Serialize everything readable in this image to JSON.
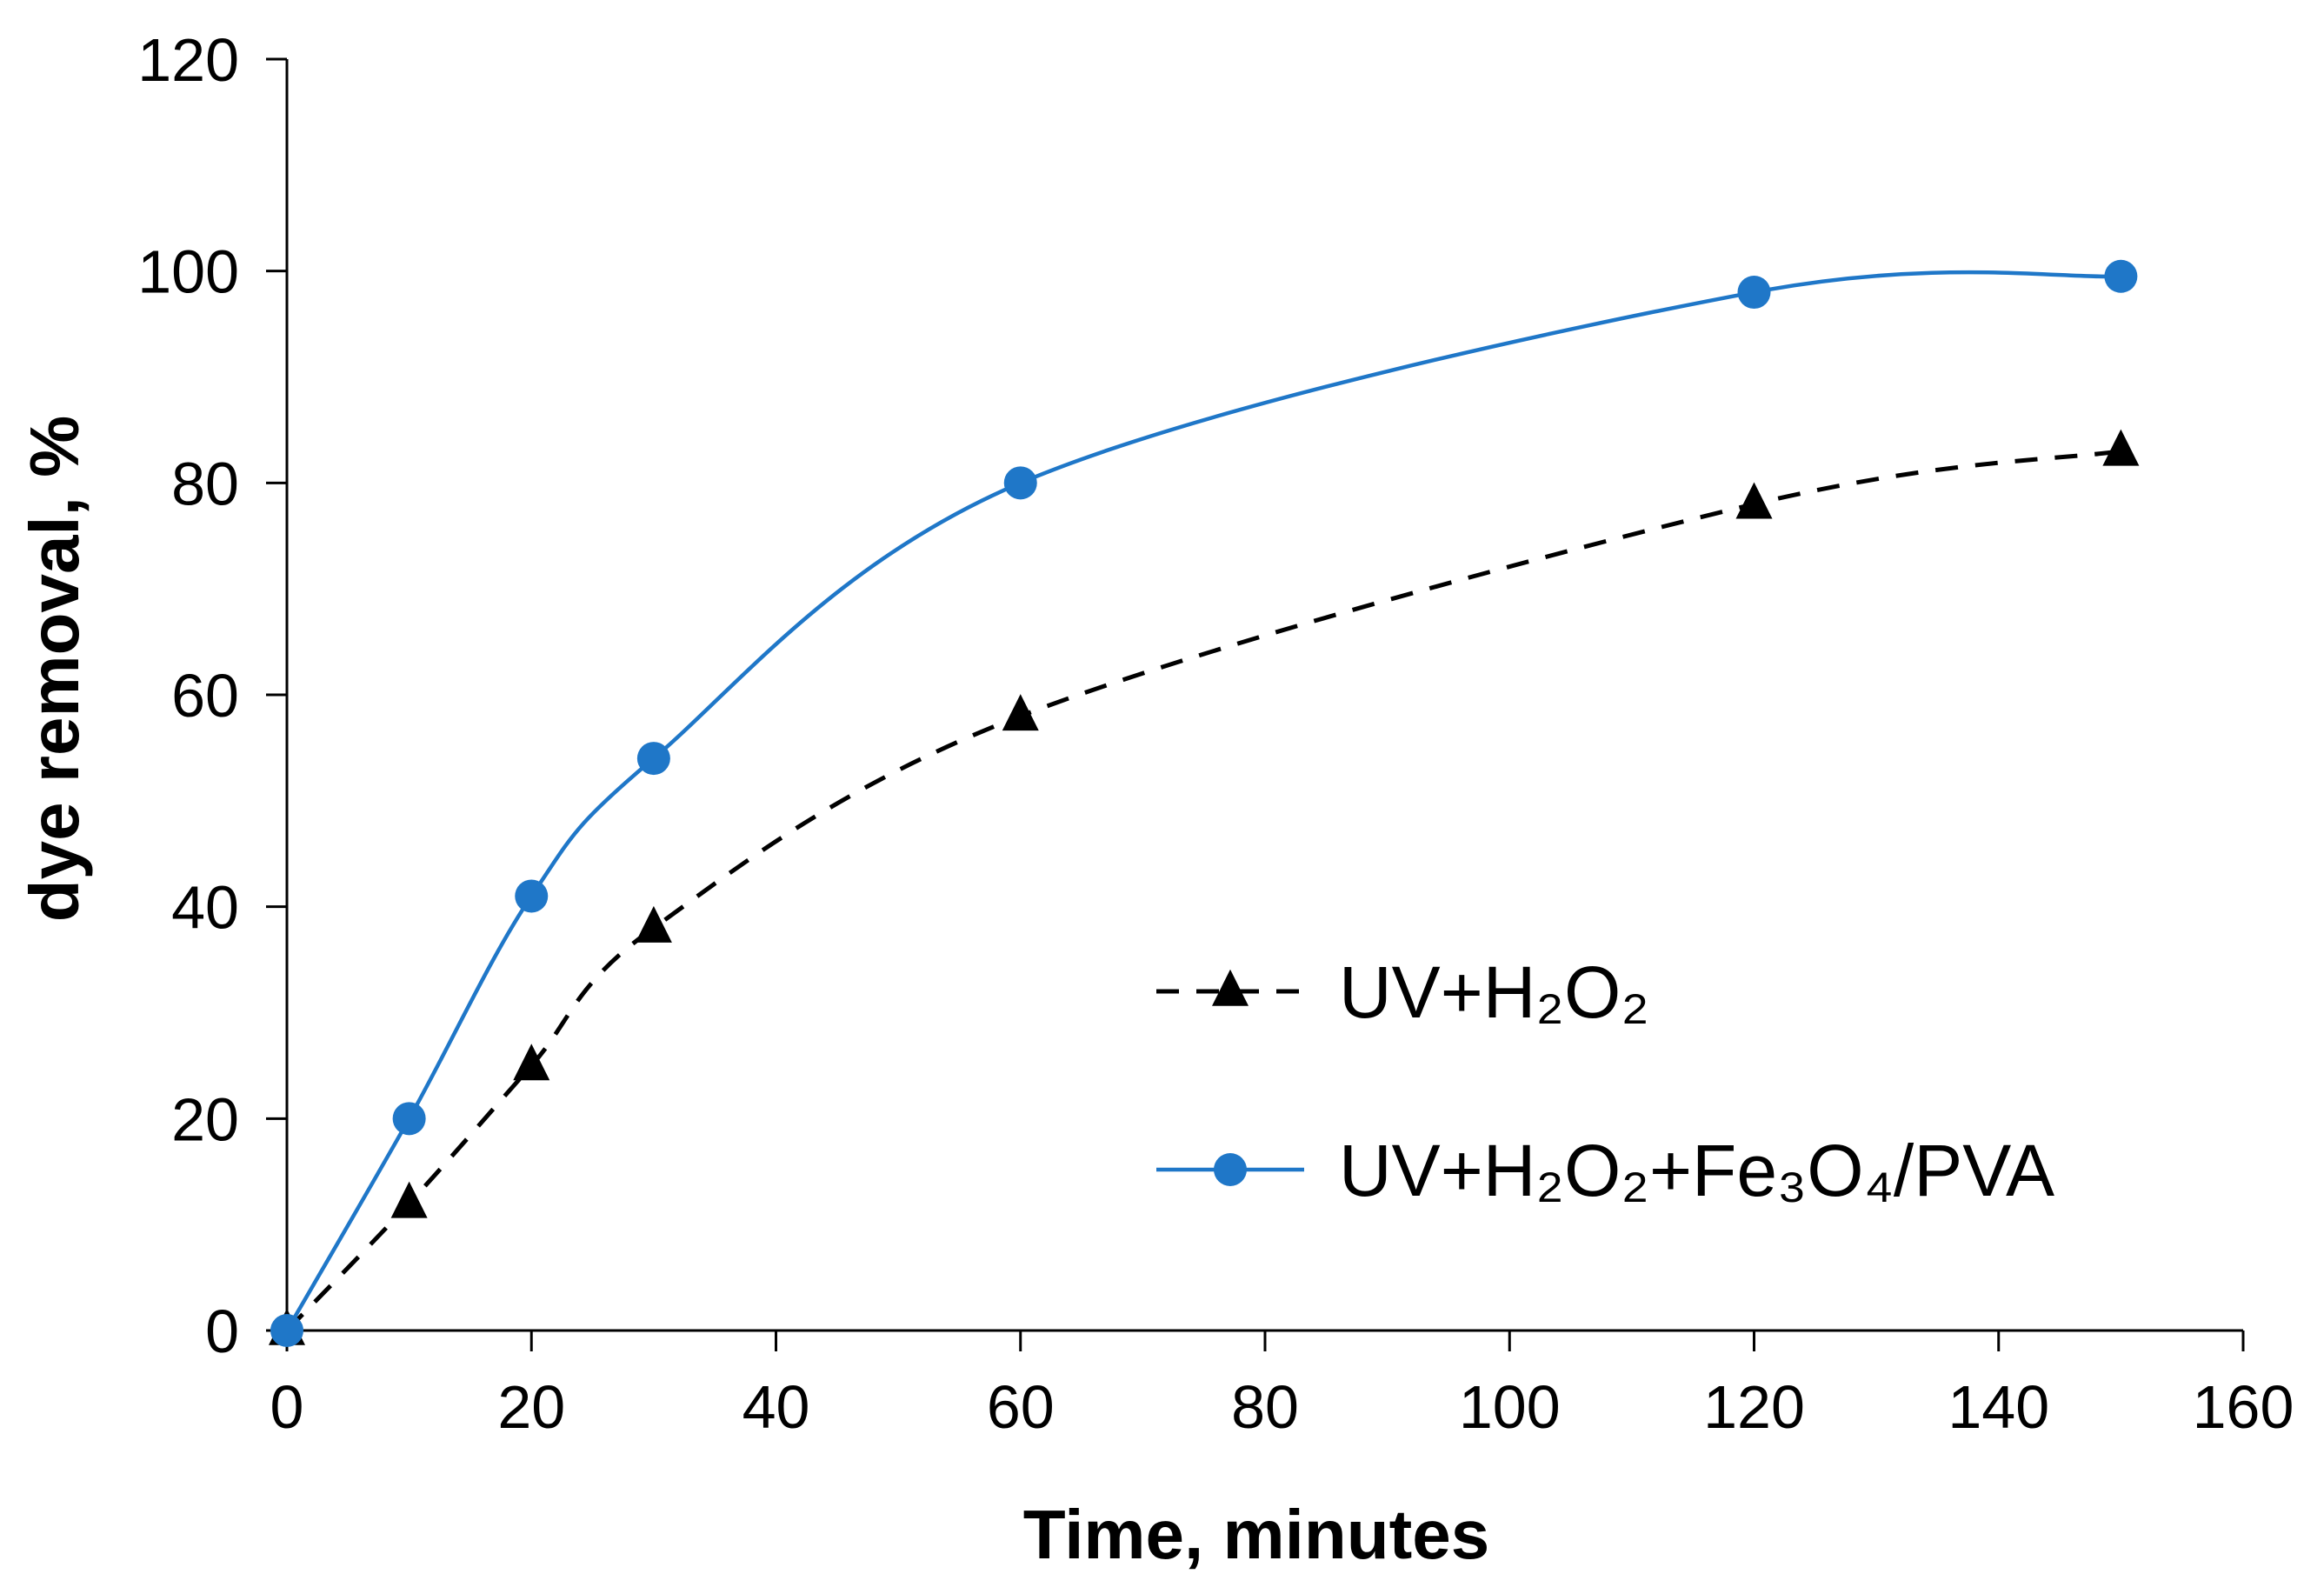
{
  "chart_data": {
    "type": "line",
    "title": "",
    "xlabel": "Time, minutes",
    "ylabel": "dye removal, %",
    "xlim": [
      0,
      160
    ],
    "ylim": [
      0,
      120
    ],
    "x_ticks": [
      "0",
      "20",
      "40",
      "60",
      "80",
      "100",
      "120",
      "140",
      "160"
    ],
    "y_ticks": [
      "0",
      "20",
      "40",
      "60",
      "80",
      "100",
      "120"
    ],
    "grid": false,
    "legend_position": "center-right",
    "series": [
      {
        "name": "UV+H2O2",
        "display_name": "UV+H₂O₂",
        "style": "dashed",
        "marker": "triangle",
        "color": "#000000",
        "x": [
          0,
          10,
          20,
          30,
          60,
          120,
          150
        ],
        "y": [
          0,
          12,
          25,
          38,
          58,
          78,
          83
        ]
      },
      {
        "name": "UV+H2O2+Fe3O4/PVA",
        "display_name": "UV+H₂O₂+Fe₃O₄/PVA",
        "style": "solid",
        "marker": "circle",
        "color": "#1f77c8",
        "x": [
          0,
          10,
          20,
          30,
          60,
          120,
          150
        ],
        "y": [
          0,
          20,
          41,
          54,
          80,
          98,
          99.5
        ]
      }
    ]
  }
}
